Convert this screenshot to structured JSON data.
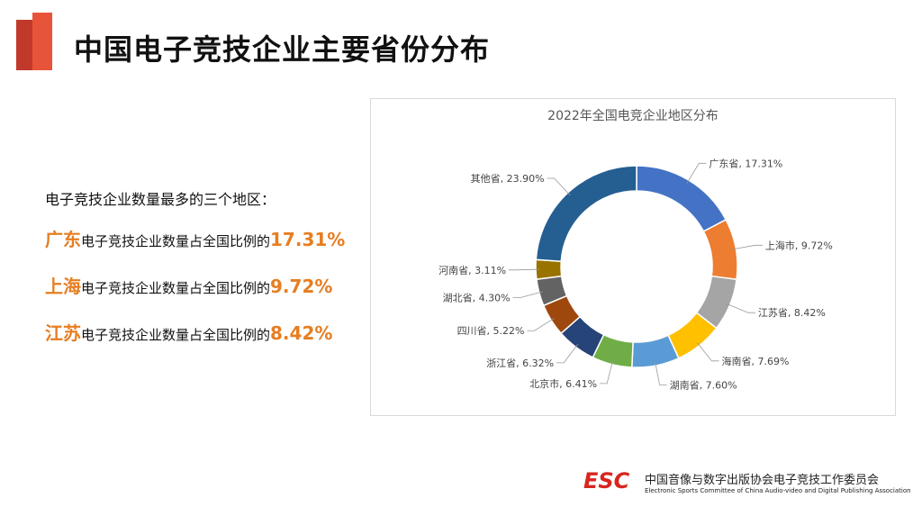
{
  "header": {
    "title": "中国电子竞技企业主要省份分布"
  },
  "left_panel": {
    "intro": "电子竞技企业数量最多的三个地区：",
    "stats": [
      {
        "region": "广东",
        "text": "电子竞技企业数量占全国比例的",
        "value": "17.31%"
      },
      {
        "region": "上海",
        "text": "电子竞技企业数量占全国比例的",
        "value": "9.72%"
      },
      {
        "region": "江苏",
        "text": "电子竞技企业数量占全国比例的",
        "value": "8.42%"
      }
    ]
  },
  "chart_data": {
    "type": "pie",
    "variant": "donut",
    "title": "2022年全国电竞企业地区分布",
    "slices": [
      {
        "label": "广东省",
        "value": 17.31,
        "text": "17.31%",
        "color": "#4472c4"
      },
      {
        "label": "上海市",
        "value": 9.72,
        "text": "9.72%",
        "color": "#ed7d31"
      },
      {
        "label": "江苏省",
        "value": 8.42,
        "text": "8.42%",
        "color": "#a5a5a5"
      },
      {
        "label": "海南省",
        "value": 7.69,
        "text": "7.69%",
        "color": "#ffc000"
      },
      {
        "label": "湖南省",
        "value": 7.6,
        "text": "7.60%",
        "color": "#5b9bd5"
      },
      {
        "label": "北京市",
        "value": 6.41,
        "text": "6.41%",
        "color": "#70ad47"
      },
      {
        "label": "浙江省",
        "value": 6.32,
        "text": "6.32%",
        "color": "#264478"
      },
      {
        "label": "四川省",
        "value": 5.22,
        "text": "5.22%",
        "color": "#9e480e"
      },
      {
        "label": "湖北省",
        "value": 4.3,
        "text": "4.30%",
        "color": "#636363"
      },
      {
        "label": "河南省",
        "value": 3.11,
        "text": "3.11%",
        "color": "#997300"
      },
      {
        "label": "其他省",
        "value": 23.9,
        "text": "23.90%",
        "color": "#255e91"
      }
    ]
  },
  "footer": {
    "logo_text": "ESC",
    "org_name_cn": "中国音像与数字出版协会电子竞技工作委员会",
    "org_name_en": "Electronic Sports Committee of China Audio-video and Digital Publishing Association"
  },
  "colors": {
    "accent_orange": "#e67e22",
    "title_bar_red": "#c0392b",
    "logo_red": "#d7261e"
  }
}
